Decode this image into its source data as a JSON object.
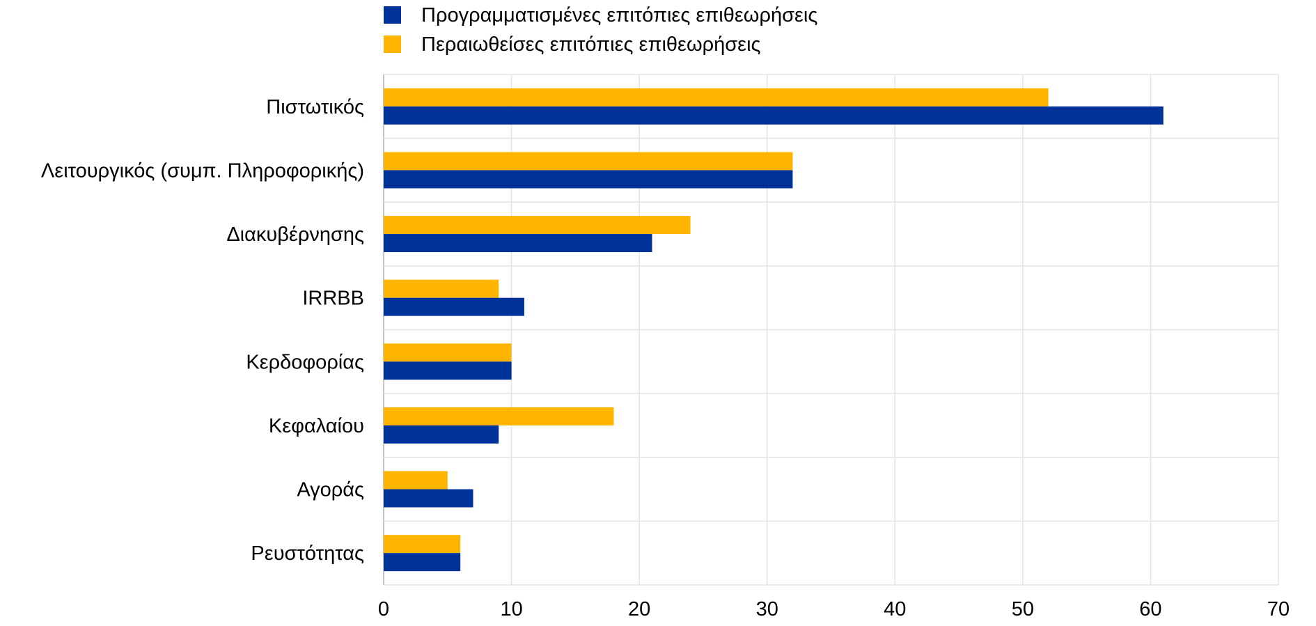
{
  "chart_data": {
    "type": "bar",
    "orientation": "horizontal",
    "categories": [
      "Πιστωτικός",
      "Λειτουργικός (συμπ. Πληροφορικής)",
      "Διακυβέρνησης",
      "IRRBB",
      "Κερδοφορίας",
      "Κεφαλαίου",
      "Αγοράς",
      "Ρευστότητας"
    ],
    "series": [
      {
        "name": "Προγραμματισμένες επιτόπιες επιθεωρήσεις",
        "color": "#003299",
        "values": [
          61,
          32,
          21,
          11,
          10,
          9,
          7,
          6
        ]
      },
      {
        "name": "Περαιωθείσες επιτόπιες επιθεωρήσεις",
        "color": "#FFB400",
        "values": [
          52,
          32,
          24,
          9,
          10,
          18,
          5,
          6
        ]
      }
    ],
    "xlim": [
      0,
      70
    ],
    "xticks": [
      "0",
      "10",
      "20",
      "30",
      "40",
      "50",
      "60",
      "70"
    ],
    "grid": true,
    "legend_position": "top-left"
  }
}
